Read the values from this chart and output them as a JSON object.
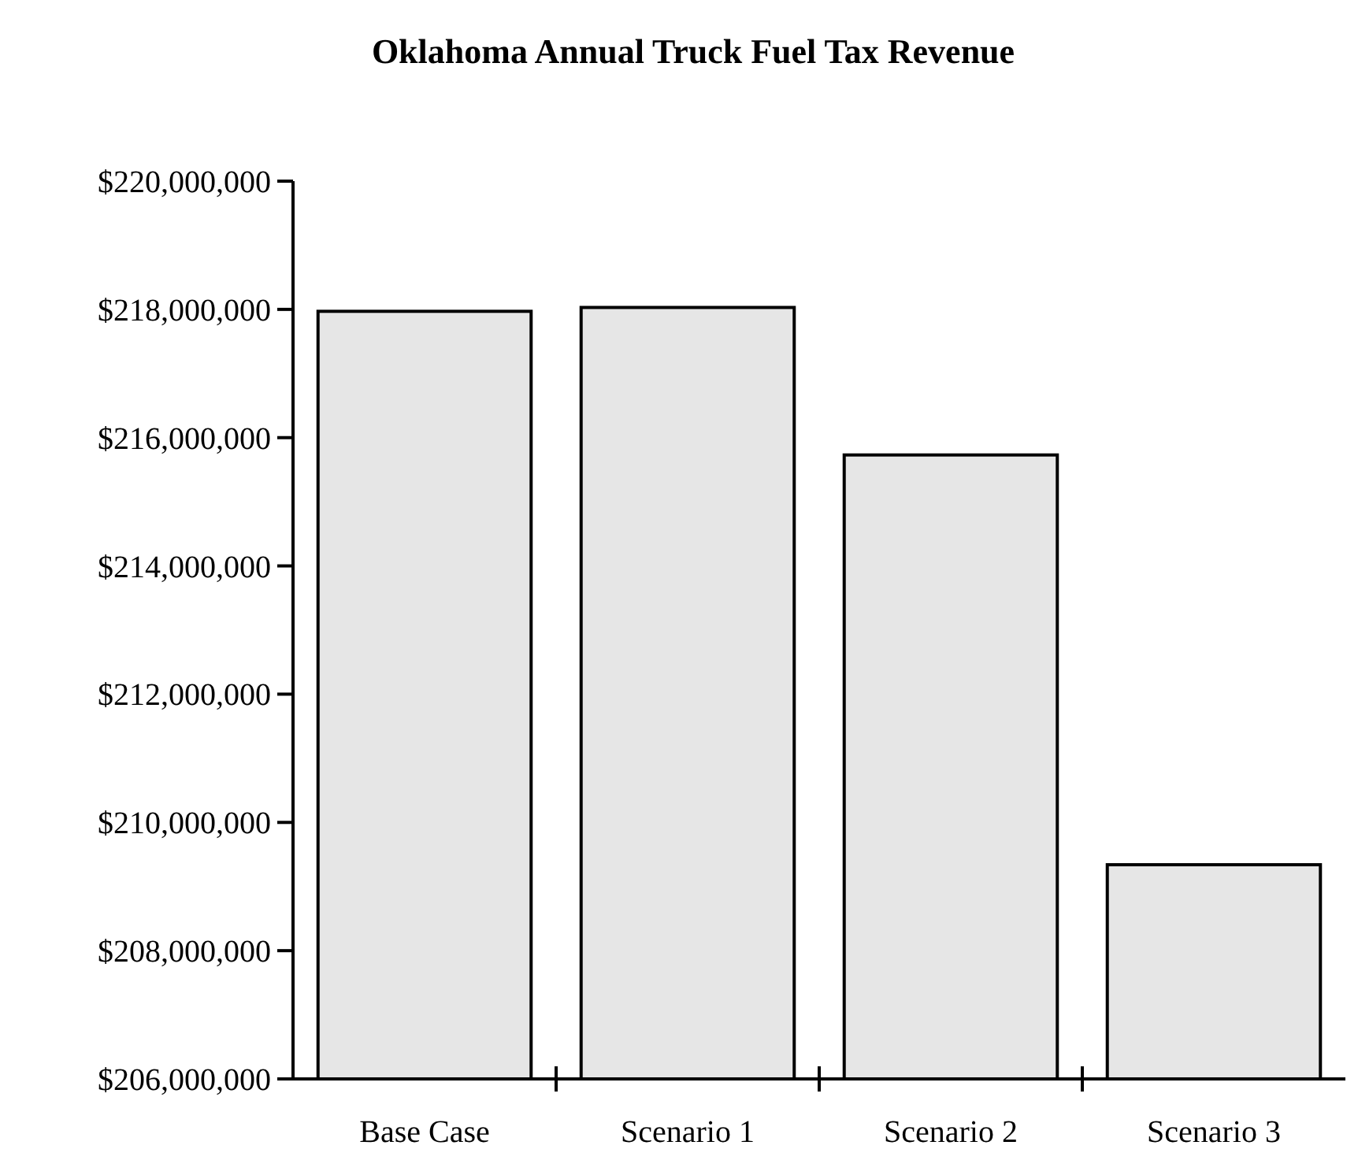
{
  "chart_data": {
    "type": "bar",
    "title": "Oklahoma Annual Truck Fuel Tax Revenue",
    "categories": [
      "Base Case",
      "Scenario 1",
      "Scenario 2",
      "Scenario 3"
    ],
    "values": [
      217970000,
      218030000,
      215730000,
      209340000
    ],
    "color": "#e6e6e6",
    "ylim": [
      206000000,
      220000000
    ],
    "yticks": [
      {
        "value": 206000000,
        "label": "$206,000,000"
      },
      {
        "value": 208000000,
        "label": "$208,000,000"
      },
      {
        "value": 210000000,
        "label": "$210,000,000"
      },
      {
        "value": 212000000,
        "label": "$212,000,000"
      },
      {
        "value": 214000000,
        "label": "$214,000,000"
      },
      {
        "value": 216000000,
        "label": "$216,000,000"
      },
      {
        "value": 218000000,
        "label": "$218,000,000"
      },
      {
        "value": 220000000,
        "label": "$220,000,000"
      }
    ],
    "grid": false
  }
}
